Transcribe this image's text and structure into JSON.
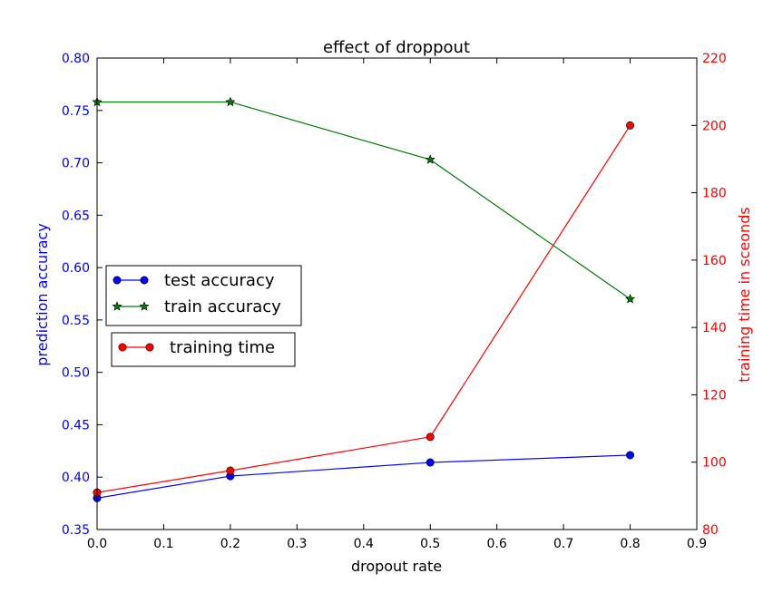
{
  "chart_data": {
    "type": "line",
    "title": "effect of droppout",
    "xlabel": "dropout rate",
    "ylabel_left": "prediction accuracy",
    "ylabel_right": "training time in sceonds",
    "xlim": [
      0.0,
      0.9
    ],
    "ylim_left": [
      0.35,
      0.8
    ],
    "ylim_right": [
      80,
      220
    ],
    "x_ticks": [
      "0.0",
      "0.1",
      "0.2",
      "0.3",
      "0.4",
      "0.5",
      "0.6",
      "0.7",
      "0.8",
      "0.9"
    ],
    "y_left_ticks": [
      "0.35",
      "0.40",
      "0.45",
      "0.50",
      "0.55",
      "0.60",
      "0.65",
      "0.70",
      "0.75",
      "0.80"
    ],
    "y_right_ticks": [
      "80",
      "100",
      "120",
      "140",
      "160",
      "180",
      "200",
      "220"
    ],
    "x": [
      0.0,
      0.2,
      0.5,
      0.8
    ],
    "grid": false,
    "series": [
      {
        "name": "test accuracy",
        "axis": "left",
        "color": "#0000ff",
        "marker": "circle",
        "values": [
          0.38,
          0.401,
          0.414,
          0.421
        ]
      },
      {
        "name": "train accuracy",
        "axis": "left",
        "color": "#007f00",
        "marker": "star",
        "values": [
          0.758,
          0.758,
          0.703,
          0.57
        ]
      },
      {
        "name": "training time",
        "axis": "right",
        "color": "#ff0000",
        "marker": "circle",
        "values": [
          91,
          97.5,
          107.5,
          200
        ]
      }
    ],
    "legends": [
      {
        "placement": "center-left",
        "entries": [
          "test accuracy",
          "train accuracy"
        ]
      },
      {
        "placement": "center-left",
        "entries": [
          "training time"
        ]
      }
    ],
    "colors": {
      "left_axis": "#0000ff",
      "right_axis": "#ff0000",
      "frame": "#000000"
    }
  }
}
